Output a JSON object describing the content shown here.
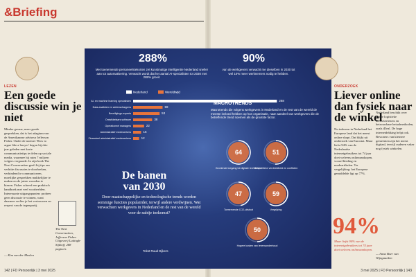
{
  "header": {
    "title": "&Briefing"
  },
  "left_article": {
    "label": "LEZEN",
    "headline": "Een goede discussie win je niet",
    "body": "Minder gevaar, meer goede gesprekken, dat is het adagium van de Amerikaanse adviseur Jefferson Fisher. Onder de noemer 'How to argue like a lawyer' begon hij drie jaar geleden met korte communicatietips te delen op sociale media, waarmee hij ruim 7 miljoen volgers vergaarde. In zijn boek The Next Conversation geeft hij tips om verhitte discussies te doorbreken, verbindend te communiceren, moeilijke gesprekken makkelijker te maken en de juiste woorden te kiezen. Fisher schreef een praktisch handboek met veel voorbeelden. Interessante uitgangspunten: probeer geen discussie te winnen, want daarmee verlies je het vertrouwen en respect van de tegenpartij.",
    "signature": "— Kim van der Meulen",
    "book_caption": "The Next Conversation, Jefferson Fisher. Uitgeverij Luitingh-Sijthoff. 288 pagina's"
  },
  "infographic": {
    "stat_1": "288%",
    "stat_1_text": "Met toenemende personeelstekorten zet kunstmatige intelligentie Nederland sneller aan tot automatisering. Verwacht wordt dat het aantal AI-specialisten tot 2030 met 288% groeit.",
    "stat_2": "90%",
    "stat_2_text": "van de werkgevers verwacht me dieselben in 2030 tot wel 10% meer werknemers nodig te hebben.",
    "legend": [
      "Nederland",
      "Wereldwijd"
    ],
    "bars": [
      {
        "label": "AI- en machine learning specialisten",
        "value": 288
      },
      {
        "label": "Data-analisten en wetenschappers",
        "value": 59
      },
      {
        "label": "Beveiligings-experts",
        "value": 53
      },
      {
        "label": "Ontwikkelaars software",
        "value": 38
      },
      {
        "label": "Operationeel managers",
        "value": 22
      },
      {
        "label": "Administratief medewerkers",
        "value": 16
      },
      {
        "label": "Financieel administratief medewerkers",
        "value": 12
      }
    ],
    "macro_title": "MACROTRENDS",
    "macro_text": "Macrotrends die volgens werkgevers in Nederland en de rest van de wereld de meeste invloed hebben op hun organisatie, naar aandeel van werkgevers die de betreffende trend noemen als de grootste factor.",
    "macro_items": [
      {
        "value": 64,
        "label": "Groeiende toegang tot digitale technieken"
      },
      {
        "value": 51,
        "label": "Geopolitieke verdeeldheid en conflicten"
      },
      {
        "value": 47,
        "label": "Toenemende CO2-uitstoot"
      },
      {
        "value": 59,
        "label": "Vergrijzing"
      },
      {
        "value": 50,
        "label": "Hogere kosten van levensonderhoud"
      }
    ],
    "title": "De banen van 2030",
    "intro": "Door maatschappelijke en technologische trends worden sommige functies populairder, terwijl andere verdwijnen. Wat verwachten werkgevers in Nederland en de rest van de wereld voor de nabije toekomst?",
    "credit": "Tekst Ruud Dijkers"
  },
  "right_article": {
    "label": "ONDERZOEK",
    "headline": "Liever online dan fysiek naar de winkel",
    "body_1": "Nu iedereen in Nederland het Europese land dat het meest online shopt. Dat blijkt uit onderzoek van Eurostat. Maar liefst 94% van de Nederlandse internetgebruikers tot 74 jaar doet weleens onlineaankopen, vooral kleding en modeartikelen. Ter vergelijking: het Europese gemiddelde ligt op 77%.",
    "body_2": "Nederland beschikt over goede logistieke dienstverleners en betrouwbare betaalmethoden, zoals iDeal. De hoge internetdekking helpt ook. Bewoners van kleinere gemeenten zijn het meest digitaal, terwijl ouderen vaker nog fysiek winkelen.",
    "stat": "94%",
    "stat_text": "Maar liefst 94% van de internetgebruikers tot 74 jaar doet weleens onlineaankopen.",
    "signature": "— Anna Boer van Wijngaarden"
  },
  "footer": {
    "left": "142 | FD Persoonlijk | 3 mei 2025",
    "right": "3 mei 2025 | FD Persoonlijk | 143"
  }
}
